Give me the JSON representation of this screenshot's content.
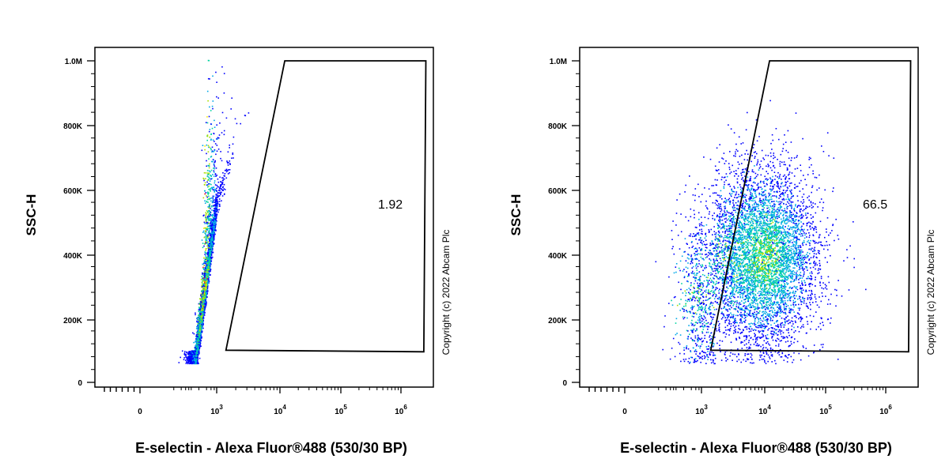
{
  "chart_data": [
    {
      "type": "scatter",
      "xlabel": "E-selectin - Alexa Fluor®488 (530/30 BP)",
      "ylabel": "SSC-H",
      "y_ticks": [
        "0",
        "200K",
        "400K",
        "600K",
        "800K",
        "1.0M"
      ],
      "x_ticks": [
        {
          "base": "0",
          "exp": ""
        },
        {
          "base": "10",
          "exp": "3"
        },
        {
          "base": "10",
          "exp": "4"
        },
        {
          "base": "10",
          "exp": "5"
        },
        {
          "base": "10",
          "exp": "6"
        }
      ],
      "ylim": [
        0,
        1000000
      ],
      "x_scale": "biexponential",
      "gate_value": "1.92",
      "gate_polygon": [
        [
          1400,
          100000
        ],
        [
          12000,
          1000000
        ],
        [
          2600000,
          1000000
        ],
        [
          2400000,
          95000
        ]
      ],
      "copyright": "Copyright (c) 2022 Abcam Plc",
      "population": {
        "x_center": 300,
        "y_center": 260000,
        "density": "compact diagonal cluster, mostly outside gate"
      }
    },
    {
      "type": "scatter",
      "xlabel": "E-selectin - Alexa Fluor®488 (530/30 BP)",
      "ylabel": "SSC-H",
      "y_ticks": [
        "0",
        "200K",
        "400K",
        "600K",
        "800K",
        "1.0M"
      ],
      "x_ticks": [
        {
          "base": "0",
          "exp": ""
        },
        {
          "base": "10",
          "exp": "3"
        },
        {
          "base": "10",
          "exp": "4"
        },
        {
          "base": "10",
          "exp": "5"
        },
        {
          "base": "10",
          "exp": "6"
        }
      ],
      "ylim": [
        0,
        1000000
      ],
      "x_scale": "biexponential",
      "gate_value": "66.5",
      "gate_polygon": [
        [
          1400,
          100000
        ],
        [
          12000,
          1000000
        ],
        [
          2600000,
          1000000
        ],
        [
          2400000,
          95000
        ]
      ],
      "copyright": "Copyright (c) 2022 Abcam Plc",
      "population": {
        "x_center": 10000,
        "y_center": 360000,
        "density": "broad cluster, majority inside gate"
      }
    }
  ],
  "colors": {
    "density_low": "#0000ff",
    "density_mid": "#00d4a0",
    "density_high": "#ffee00",
    "density_peak": "#ff2000",
    "axis": "#000000"
  }
}
